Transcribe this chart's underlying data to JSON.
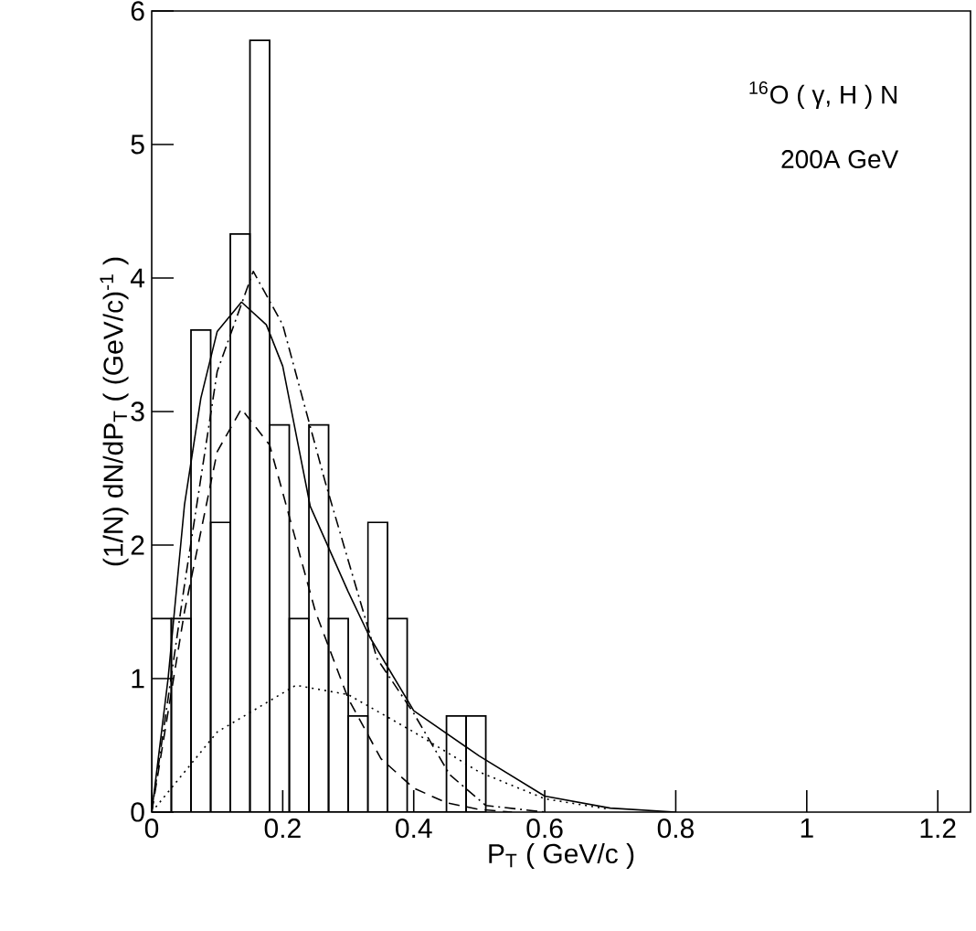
{
  "chart_data": {
    "type": "histogram",
    "xlabel": "P$_{T}$ ( GeV/c )",
    "ylabel": "(1/N) dN/dP$_{T}$ ( (GeV/c)$^{-1}$ )",
    "annotations": [
      "$^{16}$O ( γ, H ) N",
      "200A GeV"
    ],
    "bins": [
      0,
      0.03,
      0.06,
      0.09,
      0.12,
      0.15,
      0.18,
      0.21,
      0.24,
      0.27,
      0.3,
      0.33,
      0.36,
      0.39,
      0.42,
      0.45,
      0.48,
      0.51
    ],
    "values": [
      1.45,
      1.45,
      3.61,
      2.17,
      4.33,
      5.78,
      2.9,
      1.45,
      2.9,
      1.45,
      0.72,
      2.17,
      1.45,
      0,
      0,
      0.72,
      0.72
    ],
    "color": "#000000",
    "series": [
      {
        "type": "line",
        "line_style": "solid",
        "color": "#000000",
        "x": [
          0,
          0.025,
          0.05,
          0.075,
          0.1,
          0.137,
          0.175,
          0.2,
          0.242,
          0.3,
          0.333,
          0.4,
          0.5,
          0.6,
          0.7,
          0.8
        ],
        "values": [
          0,
          1.0,
          2.3,
          3.1,
          3.6,
          3.82,
          3.65,
          3.34,
          2.29,
          1.65,
          1.31,
          0.76,
          0.42,
          0.12,
          0.03,
          0
        ]
      },
      {
        "type": "line",
        "line_style": "dashdot",
        "color": "#000000",
        "x": [
          0,
          0.05,
          0.1,
          0.155,
          0.2,
          0.265,
          0.344,
          0.4,
          0.455,
          0.51,
          0.6
        ],
        "values": [
          0,
          1.7,
          3.3,
          4.05,
          3.65,
          2.47,
          1.15,
          0.74,
          0.28,
          0.05,
          0
        ]
      },
      {
        "type": "line",
        "line_style": "dashed",
        "color": "#000000",
        "x": [
          0,
          0.05,
          0.1,
          0.137,
          0.18,
          0.25,
          0.3,
          0.35,
          0.4,
          0.45,
          0.5,
          0.55
        ],
        "values": [
          0,
          1.5,
          2.7,
          3.02,
          2.75,
          1.5,
          0.85,
          0.4,
          0.18,
          0.07,
          0.02,
          0
        ]
      },
      {
        "type": "line",
        "line_style": "dotted",
        "color": "#000000",
        "x": [
          0,
          0.1,
          0.22,
          0.3,
          0.4,
          0.5,
          0.6,
          0.7
        ],
        "values": [
          0,
          0.6,
          0.95,
          0.88,
          0.6,
          0.3,
          0.1,
          0.02
        ]
      }
    ],
    "xlim": [
      0,
      1.25
    ],
    "ylim": [
      0,
      6
    ],
    "xticks": [
      0,
      0.2,
      0.4,
      0.6,
      0.8,
      1,
      1.2
    ],
    "yticks": [
      0,
      1,
      2,
      3,
      4,
      5,
      6
    ],
    "grid": false
  }
}
